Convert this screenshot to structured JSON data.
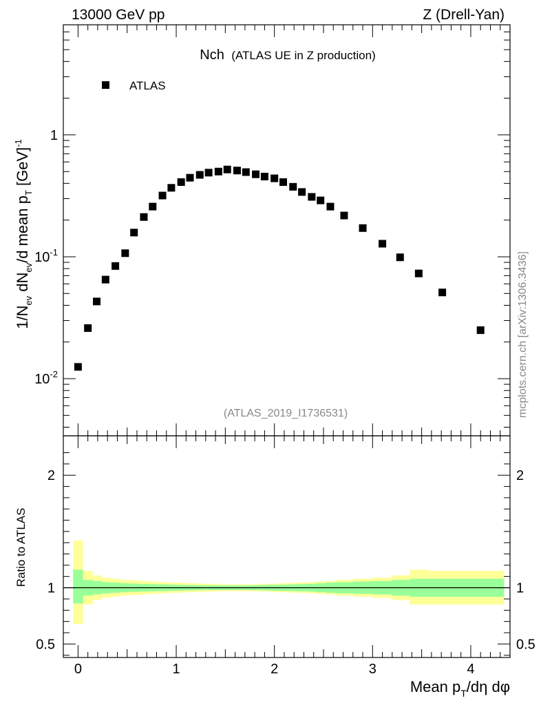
{
  "header": {
    "left": "13000 GeV pp",
    "right": "Z (Drell-Yan)"
  },
  "side_label": "mcplots.cern.ch [arXiv:1306.3436]",
  "analysis_id": "(ATLAS_2019_I1736531)",
  "colors": {
    "band_inner": "#99ff99",
    "band_outer": "#ffff99",
    "marker": "#000000",
    "watermark": "#888888"
  },
  "chart_data": [
    {
      "type": "scatter",
      "title_main": "Nch",
      "title_sub": "(ATLAS UE in Z production)",
      "ylabel_parts": {
        "a": "1/N",
        "a_sub": "ev",
        "b": " dN",
        "b_sub": "ev",
        "c": "/d mean p",
        "c_sub": "T",
        "d": " [GeV]",
        "d_sup": "-1"
      },
      "yscale": "log",
      "ylim": [
        0.0034,
        8.0
      ],
      "xlim": [
        -0.15,
        4.4
      ],
      "legend": {
        "position": "top-left",
        "entries": [
          "ATLAS"
        ]
      },
      "y_tick_labels": [
        {
          "value": 0.01,
          "base": "10",
          "exp": "-2"
        },
        {
          "value": 0.1,
          "base": "10",
          "exp": "-1"
        },
        {
          "value": 1,
          "base": "1",
          "exp": ""
        }
      ],
      "series": [
        {
          "name": "ATLAS",
          "x": [
            0.0,
            0.1,
            0.19,
            0.28,
            0.38,
            0.48,
            0.57,
            0.67,
            0.76,
            0.86,
            0.95,
            1.05,
            1.14,
            1.24,
            1.33,
            1.43,
            1.52,
            1.62,
            1.71,
            1.81,
            1.9,
            2.0,
            2.09,
            2.19,
            2.28,
            2.38,
            2.47,
            2.57,
            2.71,
            2.9,
            3.1,
            3.28,
            3.47,
            3.71,
            4.1
          ],
          "y": [
            0.0125,
            0.026,
            0.043,
            0.065,
            0.084,
            0.107,
            0.158,
            0.212,
            0.258,
            0.318,
            0.368,
            0.41,
            0.445,
            0.47,
            0.49,
            0.5,
            0.52,
            0.51,
            0.495,
            0.475,
            0.455,
            0.44,
            0.41,
            0.375,
            0.34,
            0.31,
            0.29,
            0.258,
            0.218,
            0.172,
            0.128,
            0.099,
            0.073,
            0.051,
            0.025
          ]
        }
      ]
    },
    {
      "type": "area",
      "ylabel": "Ratio to ATLAS",
      "xlabel_parts": {
        "a": "Mean p",
        "a_sub": "T",
        "b": "/dη dφ"
      },
      "xlim": [
        -0.15,
        4.4
      ],
      "ylim": [
        0.38,
        2.35
      ],
      "x_ticks": [
        0,
        1,
        2,
        3,
        4
      ],
      "x_tick_labels": [
        "0",
        "1",
        "2",
        "3",
        "4"
      ],
      "y_ticks": [
        0.5,
        1,
        2
      ],
      "y_tick_labels": [
        "0.5",
        "1",
        "2"
      ],
      "reference_line": 1,
      "bins": [
        -0.05,
        0.05,
        0.15,
        0.24,
        0.33,
        0.43,
        0.52,
        0.62,
        0.71,
        0.81,
        0.9,
        1.0,
        1.09,
        1.19,
        1.28,
        1.38,
        1.47,
        1.57,
        1.66,
        1.76,
        1.85,
        1.95,
        2.04,
        2.14,
        2.23,
        2.33,
        2.42,
        2.52,
        2.62,
        2.8,
        3.0,
        3.2,
        3.38,
        3.58,
        3.86,
        4.34
      ],
      "bands": [
        {
          "name": "inner",
          "color": "#99ff99",
          "lo": [
            0.86,
            0.93,
            0.94,
            0.95,
            0.955,
            0.96,
            0.963,
            0.966,
            0.968,
            0.97,
            0.972,
            0.974,
            0.976,
            0.978,
            0.98,
            0.98,
            0.98,
            0.98,
            0.98,
            0.978,
            0.976,
            0.974,
            0.972,
            0.97,
            0.968,
            0.965,
            0.96,
            0.955,
            0.95,
            0.945,
            0.94,
            0.93,
            0.92,
            0.92,
            0.92
          ],
          "hi": [
            1.16,
            1.07,
            1.06,
            1.05,
            1.045,
            1.04,
            1.037,
            1.034,
            1.032,
            1.03,
            1.028,
            1.026,
            1.024,
            1.022,
            1.02,
            1.02,
            1.02,
            1.02,
            1.02,
            1.022,
            1.024,
            1.026,
            1.028,
            1.03,
            1.032,
            1.035,
            1.04,
            1.045,
            1.05,
            1.055,
            1.06,
            1.07,
            1.08,
            1.08,
            1.08
          ]
        },
        {
          "name": "outer",
          "color": "#ffff99",
          "lo": [
            0.68,
            0.85,
            0.89,
            0.91,
            0.92,
            0.93,
            0.935,
            0.94,
            0.945,
            0.95,
            0.953,
            0.956,
            0.96,
            0.962,
            0.965,
            0.967,
            0.97,
            0.97,
            0.97,
            0.968,
            0.966,
            0.963,
            0.96,
            0.957,
            0.954,
            0.95,
            0.945,
            0.94,
            0.93,
            0.92,
            0.91,
            0.89,
            0.85,
            0.85,
            0.85
          ],
          "hi": [
            1.42,
            1.15,
            1.11,
            1.09,
            1.08,
            1.07,
            1.065,
            1.06,
            1.055,
            1.05,
            1.047,
            1.044,
            1.04,
            1.038,
            1.035,
            1.033,
            1.03,
            1.03,
            1.03,
            1.032,
            1.034,
            1.037,
            1.04,
            1.043,
            1.046,
            1.05,
            1.055,
            1.06,
            1.07,
            1.08,
            1.09,
            1.11,
            1.16,
            1.15,
            1.15
          ]
        }
      ]
    }
  ]
}
